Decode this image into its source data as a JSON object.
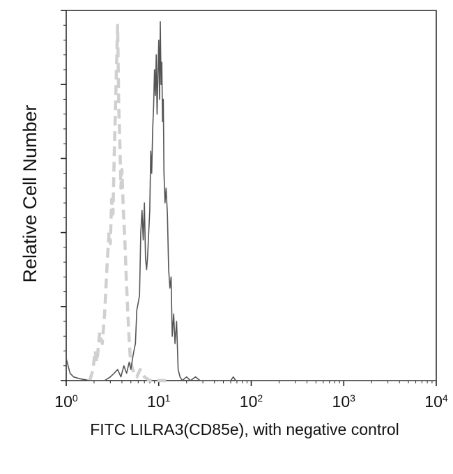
{
  "chart_data": {
    "type": "line",
    "title": "",
    "xlabel": "FITC LILRA3(CD85e), with negative control",
    "ylabel": "Relative Cell Number",
    "x_scale": "log",
    "xlim": [
      1,
      10000
    ],
    "ylim": [
      0,
      100
    ],
    "x_ticks": [
      {
        "base": "10",
        "exp": "0"
      },
      {
        "base": "10",
        "exp": "1"
      },
      {
        "base": "10",
        "exp": "2"
      },
      {
        "base": "10",
        "exp": "3"
      },
      {
        "base": "10",
        "exp": "4"
      }
    ],
    "grid": false,
    "legend": "none",
    "series": [
      {
        "role": "negative control",
        "style": "dashed",
        "color": "#d0d0d0",
        "points": [
          [
            1.8,
            0
          ],
          [
            1.95,
            3
          ],
          [
            2.05,
            8
          ],
          [
            2.15,
            5
          ],
          [
            2.3,
            13
          ],
          [
            2.45,
            10
          ],
          [
            2.6,
            18
          ],
          [
            2.75,
            30
          ],
          [
            2.9,
            40
          ],
          [
            3.0,
            37
          ],
          [
            3.1,
            49
          ],
          [
            3.2,
            45
          ],
          [
            3.3,
            60
          ],
          [
            3.4,
            73
          ],
          [
            3.5,
            85
          ],
          [
            3.6,
            96
          ],
          [
            3.7,
            74
          ],
          [
            3.8,
            64
          ],
          [
            3.9,
            52
          ],
          [
            4.0,
            57
          ],
          [
            4.15,
            46
          ],
          [
            4.3,
            38
          ],
          [
            4.45,
            28
          ],
          [
            4.6,
            20
          ],
          [
            4.75,
            13
          ],
          [
            4.9,
            7
          ],
          [
            5.1,
            4
          ],
          [
            5.4,
            2
          ],
          [
            5.8,
            1
          ],
          [
            6.3,
            3
          ],
          [
            7.0,
            1
          ],
          [
            8.0,
            0
          ],
          [
            12.0,
            0
          ]
        ]
      },
      {
        "role": "LILRA3 stained",
        "style": "solid",
        "color": "#555555",
        "points": [
          [
            1.0,
            6
          ],
          [
            1.1,
            2
          ],
          [
            1.2,
            1
          ],
          [
            1.4,
            0.5
          ],
          [
            1.8,
            0
          ],
          [
            2.6,
            0
          ],
          [
            3.0,
            1
          ],
          [
            3.3,
            2
          ],
          [
            3.6,
            3
          ],
          [
            3.9,
            1
          ],
          [
            4.2,
            4
          ],
          [
            4.5,
            2
          ],
          [
            4.8,
            5
          ],
          [
            5.0,
            3
          ],
          [
            5.3,
            7
          ],
          [
            5.6,
            10
          ],
          [
            5.8,
            19
          ],
          [
            6.0,
            21
          ],
          [
            6.2,
            23
          ],
          [
            6.4,
            40
          ],
          [
            6.6,
            46
          ],
          [
            6.8,
            38
          ],
          [
            7.0,
            48
          ],
          [
            7.2,
            33
          ],
          [
            7.4,
            30
          ],
          [
            7.6,
            34
          ],
          [
            7.8,
            40
          ],
          [
            8.0,
            46
          ],
          [
            8.2,
            62
          ],
          [
            8.4,
            56
          ],
          [
            8.6,
            68
          ],
          [
            8.8,
            74
          ],
          [
            9.0,
            84
          ],
          [
            9.2,
            77
          ],
          [
            9.4,
            88
          ],
          [
            9.6,
            72
          ],
          [
            9.8,
            83
          ],
          [
            10.0,
            92
          ],
          [
            10.2,
            76
          ],
          [
            10.4,
            97
          ],
          [
            10.6,
            80
          ],
          [
            10.8,
            86
          ],
          [
            11.0,
            70
          ],
          [
            11.2,
            76
          ],
          [
            11.4,
            56
          ],
          [
            11.7,
            48
          ],
          [
            12.0,
            52
          ],
          [
            12.4,
            45
          ],
          [
            12.8,
            30
          ],
          [
            13.2,
            25
          ],
          [
            13.6,
            28
          ],
          [
            14.0,
            12
          ],
          [
            14.5,
            18
          ],
          [
            15.0,
            10
          ],
          [
            15.6,
            16
          ],
          [
            16.2,
            3
          ],
          [
            17.0,
            1
          ],
          [
            18.0,
            0
          ],
          [
            20.0,
            1
          ],
          [
            22.0,
            0
          ],
          [
            25.0,
            1
          ],
          [
            28.0,
            0
          ],
          [
            60.0,
            0
          ],
          [
            64.0,
            1
          ],
          [
            68.0,
            0
          ],
          [
            10000.0,
            0
          ]
        ]
      }
    ]
  }
}
